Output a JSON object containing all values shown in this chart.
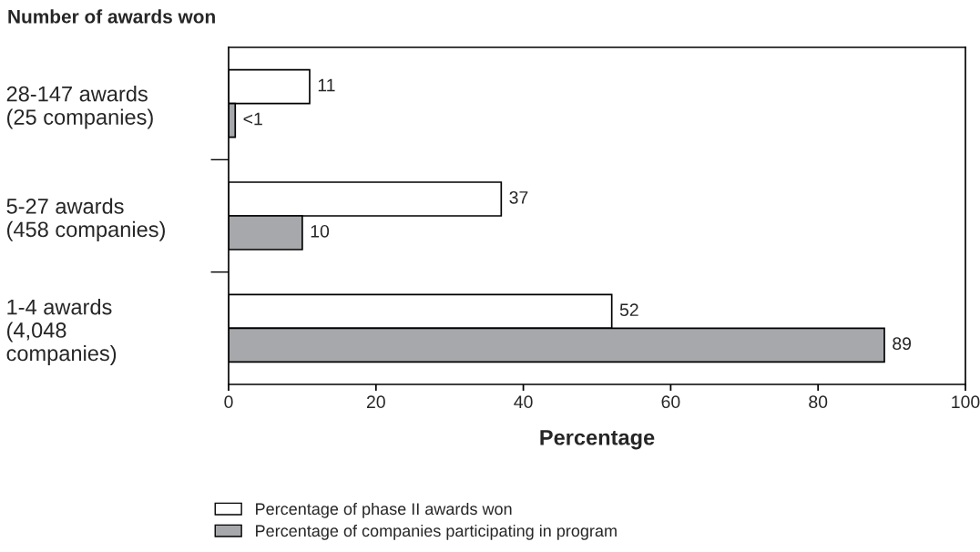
{
  "chart_data": {
    "type": "bar",
    "orientation": "horizontal",
    "title": "Number of awards won",
    "xlabel": "Percentage",
    "categories": [
      "28-147 awards\n(25 companies)",
      "5-27 awards\n(458 companies)",
      "1-4 awards\n(4,048\ncompanies)"
    ],
    "series": [
      {
        "name": "Percentage of phase II awards won",
        "color": "#ffffff",
        "values": [
          11,
          37,
          52
        ],
        "value_labels": [
          "11",
          "37",
          "52"
        ]
      },
      {
        "name": "Percentage of companies participating in program",
        "color": "#a7a8ab",
        "values": [
          0.9,
          10,
          89
        ],
        "value_labels": [
          "<1",
          "10",
          "89"
        ]
      }
    ],
    "xlim": [
      0,
      100
    ],
    "xticks": [
      0,
      20,
      40,
      60,
      80,
      100
    ],
    "grid": false,
    "legend": "bottom"
  }
}
